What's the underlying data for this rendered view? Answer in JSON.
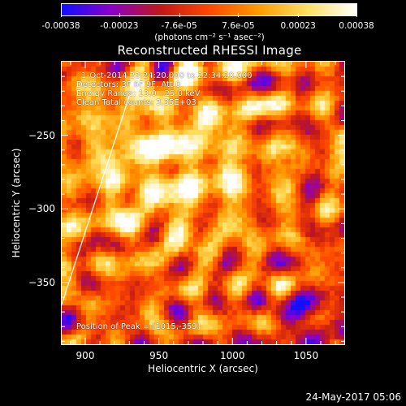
{
  "colorbar": {
    "tick_labels": [
      "-0.00038",
      "-0.00023",
      "-7.6e-05",
      "7.6e-05",
      "0.00023",
      "0.00038"
    ],
    "tick_values": [
      -0.00038,
      -0.00023,
      -7.6e-05,
      7.6e-05,
      0.00023,
      0.00038
    ],
    "range": [
      -0.00038,
      0.00038
    ],
    "units": "(photons cm⁻² s⁻¹ asec⁻²)",
    "colors": [
      "#1010ff",
      "#8a00c8",
      "#c01818",
      "#ff4800",
      "#ff9a00",
      "#ffe060",
      "#ffffff"
    ]
  },
  "header": {
    "title": "Reconstructed RHESSI Image"
  },
  "annotations": {
    "time": "1-Oct-2014 22:24:20.000 to 22:34:20.000",
    "detectors": "Detectors: 3F 6F 9F, Att 0",
    "energy": "Energy Range: 13.0 - 25.0 keV",
    "clean": "Clean    Total counts: 3.35E+03",
    "peak": "Position of Peak = [1015,-359]"
  },
  "footer": {
    "timestamp": "24-May-2017 05:06"
  },
  "chart_data": {
    "type": "heatmap",
    "title": "Reconstructed RHESSI Image",
    "xlabel": "Heliocentric X (arcsec)",
    "ylabel": "Heliocentric Y (arcsec)",
    "xlim": [
      884,
      1076
    ],
    "ylim": [
      -392,
      -200
    ],
    "xticks": [
      900,
      950,
      1000,
      1050
    ],
    "xtick_labels": [
      "900",
      "950",
      "1000",
      "1050"
    ],
    "yticks": [
      -250,
      -300,
      -350
    ],
    "ytick_labels": [
      "−250",
      "−300",
      "−350"
    ],
    "value_range": [
      -0.00038,
      0.00038
    ],
    "peak": [
      1015,
      -359
    ],
    "limb_line": [
      [
        884,
        -365
      ],
      [
        930,
        -223
      ]
    ],
    "grid": false
  }
}
